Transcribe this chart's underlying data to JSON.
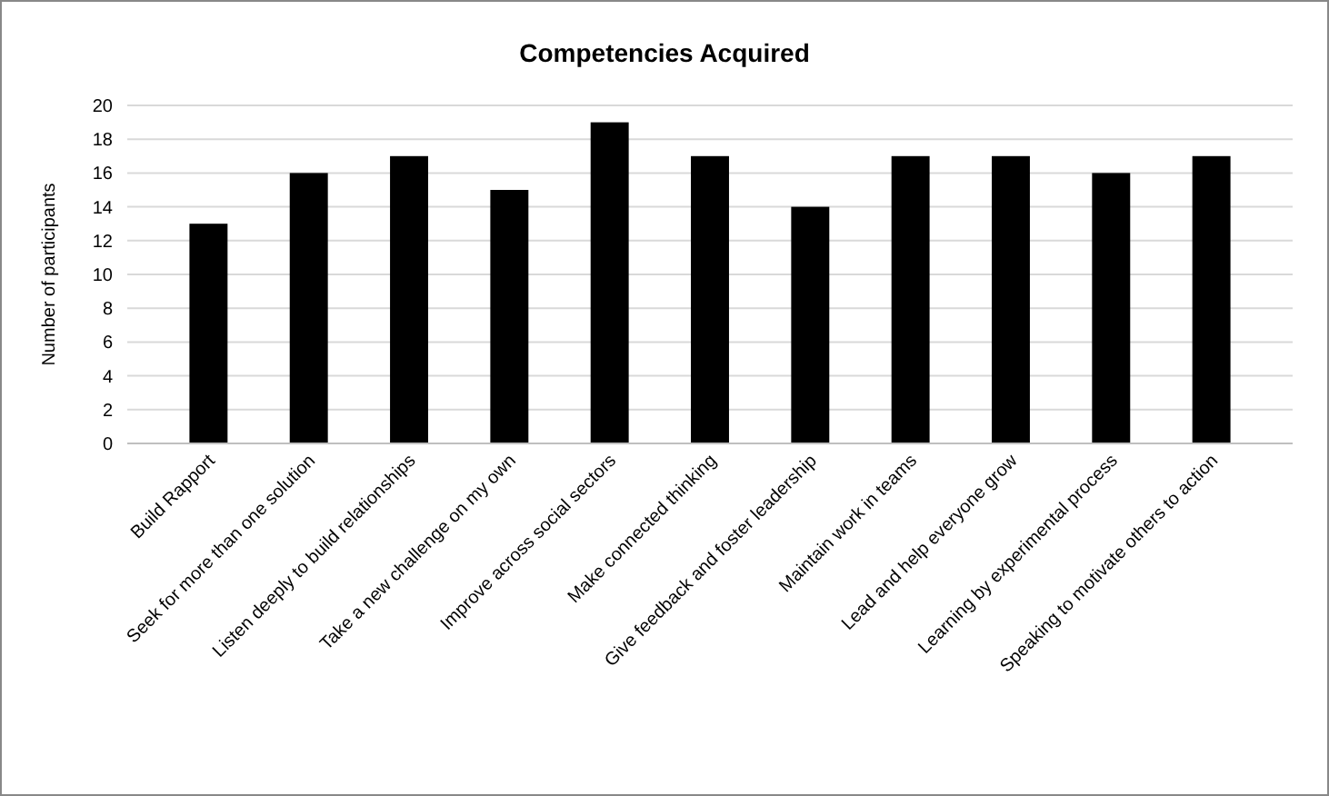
{
  "chart_data": {
    "type": "bar",
    "title": "Competencies Acquired",
    "ylabel": "Number of participants",
    "categories": [
      "Build Rapport",
      "Seek for more than one solution",
      "Listen deeply to build relationships",
      "Take a new challenge on my own",
      "Improve across social sectors",
      "Make connected thinking",
      "Give feedback and foster leadership",
      "Maintain work in teams",
      "Lead and help everyone grow",
      "Learning by experimental process",
      "Speaking to motivate others to action"
    ],
    "values": [
      13,
      16,
      17,
      15,
      19,
      17,
      14,
      17,
      17,
      16,
      17
    ],
    "color": "#000000",
    "ylim": [
      0,
      20
    ],
    "yticks": [
      0,
      2,
      4,
      6,
      8,
      10,
      12,
      14,
      16,
      18,
      20
    ],
    "grid": "y"
  }
}
